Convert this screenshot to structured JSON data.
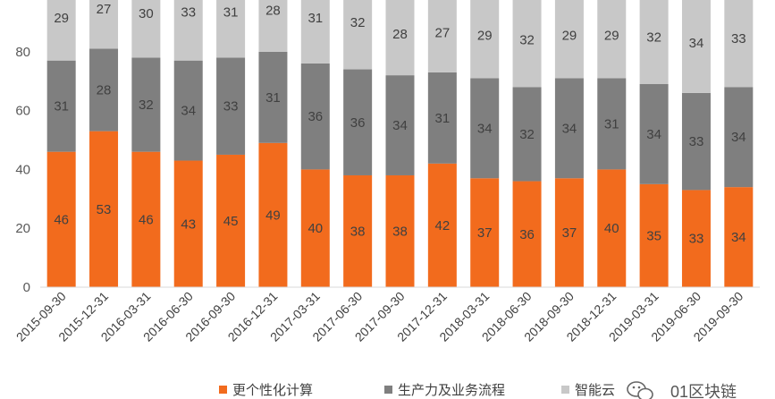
{
  "chart_data": {
    "type": "bar",
    "stacked": true,
    "categories": [
      "2015-09-30",
      "2015-12-31",
      "2016-03-31",
      "2016-06-30",
      "2016-09-30",
      "2016-12-31",
      "2017-03-31",
      "2017-06-30",
      "2017-09-30",
      "2017-12-31",
      "2018-03-31",
      "2018-06-30",
      "2018-09-30",
      "2018-12-31",
      "2019-03-31",
      "2019-06-30",
      "2019-09-30"
    ],
    "series": [
      {
        "name": "更个性化计算",
        "color": "#F26B1D",
        "values": [
          46,
          53,
          46,
          43,
          45,
          49,
          40,
          38,
          38,
          42,
          37,
          36,
          37,
          40,
          35,
          33,
          34
        ]
      },
      {
        "name": "生产力及业务流程",
        "color": "#7F7F7F",
        "values": [
          31,
          28,
          32,
          34,
          33,
          31,
          36,
          36,
          34,
          31,
          34,
          32,
          34,
          31,
          34,
          33,
          34
        ]
      },
      {
        "name": "智能云",
        "color": "#C8C8C8",
        "values": [
          29,
          27,
          30,
          33,
          31,
          28,
          31,
          32,
          28,
          27,
          29,
          32,
          29,
          29,
          32,
          34,
          33
        ]
      }
    ],
    "ylim": [
      0,
      100
    ],
    "yticks": [
      0,
      20,
      40,
      60,
      80
    ],
    "grid": false,
    "legend_position": "bottom",
    "data_labels": true
  },
  "watermark": {
    "text": "01区块链"
  }
}
